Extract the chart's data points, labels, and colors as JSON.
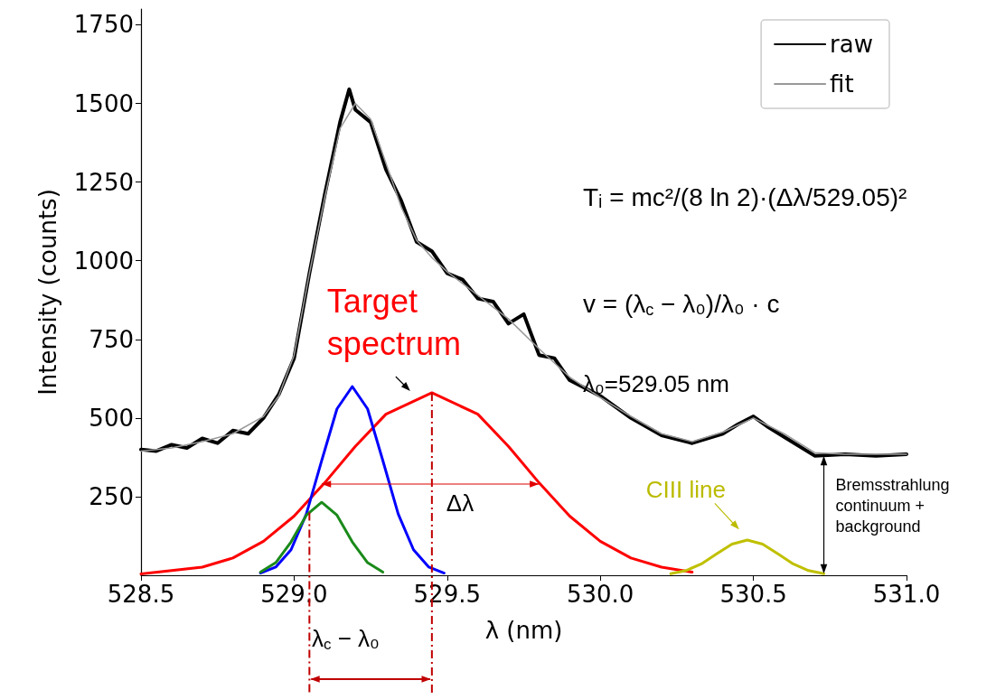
{
  "chart_data": {
    "type": "line",
    "xlabel": "λ (nm)",
    "ylabel": "Intensity (counts)",
    "xlim": [
      528.5,
      531.0
    ],
    "xticks": [
      528.5,
      {
        "value": 529,
        "label": "529.0"
      },
      529.5,
      {
        "value": 530,
        "label": "530.0"
      },
      530.5,
      {
        "value": 531,
        "label": "531.0"
      }
    ],
    "ylim": [
      0,
      1800
    ],
    "yticks": [
      250,
      500,
      750,
      1000,
      1250,
      1500,
      1750
    ],
    "grid": false,
    "legend": "top right",
    "marker": "none",
    "line_style": "solid",
    "series": [
      {
        "name": "raw",
        "color": "#000000",
        "x": [
          528.5,
          528.55,
          528.6,
          528.65,
          528.7,
          528.75,
          528.8,
          528.85,
          528.9,
          528.95,
          529.0,
          529.05,
          529.1,
          529.15,
          529.18,
          529.2,
          529.25,
          529.3,
          529.35,
          529.4,
          529.45,
          529.5,
          529.55,
          529.6,
          529.65,
          529.7,
          529.75,
          529.8,
          529.85,
          529.9,
          530.0,
          530.1,
          530.2,
          530.3,
          530.4,
          530.45,
          530.5,
          530.55,
          530.6,
          530.7,
          530.8,
          530.9,
          531.0
        ],
        "values": [
          400,
          395,
          415,
          405,
          435,
          420,
          460,
          450,
          500,
          575,
          690,
          960,
          1210,
          1440,
          1545,
          1480,
          1440,
          1290,
          1190,
          1060,
          1030,
          960,
          940,
          880,
          870,
          800,
          830,
          700,
          690,
          620,
          570,
          500,
          445,
          420,
          450,
          480,
          505,
          470,
          440,
          380,
          385,
          380,
          385
        ]
      },
      {
        "name": "fit",
        "color": "#999999",
        "x": [
          528.5,
          528.6,
          528.7,
          528.8,
          528.9,
          528.95,
          529.0,
          529.05,
          529.1,
          529.15,
          529.2,
          529.25,
          529.3,
          529.35,
          529.4,
          529.45,
          529.5,
          529.6,
          529.7,
          529.8,
          529.9,
          530.0,
          530.1,
          530.2,
          530.3,
          530.4,
          530.5,
          530.6,
          530.7,
          530.8,
          530.9,
          531.0
        ],
        "values": [
          395,
          405,
          425,
          450,
          505,
          570,
          700,
          960,
          1200,
          1420,
          1500,
          1450,
          1310,
          1170,
          1065,
          1010,
          965,
          890,
          815,
          720,
          630,
          565,
          505,
          450,
          425,
          455,
          500,
          450,
          390,
          385,
          385,
          385
        ]
      },
      {
        "color": "#ff0000",
        "x": [
          528.5,
          528.7,
          528.8,
          528.9,
          529.0,
          529.1,
          529.2,
          529.3,
          529.45,
          529.6,
          529.7,
          529.8,
          529.9,
          530.0,
          530.1,
          530.2,
          530.3
        ],
        "values": [
          4,
          26,
          55,
          108,
          188,
          294,
          410,
          512,
          580,
          512,
          410,
          294,
          188,
          108,
          55,
          26,
          10
        ]
      },
      {
        "color": "#0000ff",
        "x": [
          528.89,
          528.94,
          528.99,
          529.04,
          529.09,
          529.14,
          529.19,
          529.24,
          529.29,
          529.34,
          529.39,
          529.44,
          529.49
        ],
        "values": [
          7,
          26,
          81,
          195,
          364,
          529,
          600,
          529,
          364,
          195,
          81,
          26,
          7
        ]
      },
      {
        "color": "#1a8a1a",
        "x": [
          528.89,
          528.94,
          528.99,
          529.04,
          529.09,
          529.14,
          529.19,
          529.24,
          529.29
        ],
        "values": [
          10,
          40,
          106,
          191,
          232,
          191,
          106,
          40,
          10
        ]
      },
      {
        "color": "#c0c000",
        "x": [
          530.23,
          530.28,
          530.33,
          530.38,
          530.43,
          530.48,
          530.53,
          530.58,
          530.63,
          530.68,
          530.73
        ],
        "values": [
          5,
          15,
          36,
          68,
          99,
          112,
          99,
          68,
          36,
          15,
          5
        ]
      }
    ],
    "ref_lines": [
      {
        "axis": "x",
        "value": 529.05,
        "color": "#c00000",
        "line_style": "dashed"
      },
      {
        "axis": "x",
        "value": 529.45,
        "color": "#c00000",
        "line_style": "dashed"
      }
    ],
    "annotations": [
      "Tᵢ = mc²/(8 ln 2)·(Δλ/529.05)²",
      "v = (λ$_{c}$ − λ₀)/λ₀ · c",
      "λ₀=529.05 nm",
      {
        "text": "Target spectrum",
        "x": 529.45,
        "y": 580
      },
      {
        "text": "Δλ",
        "x": 529.45,
        "y": 290
      },
      {
        "text": "CIII line",
        "x": 530.48,
        "y": 114
      },
      {
        "text": "Bremsstrahlung continuum + background",
        "x": 530.73,
        "y": 385
      },
      "λ$_{c}$ − λ₀"
    ]
  }
}
